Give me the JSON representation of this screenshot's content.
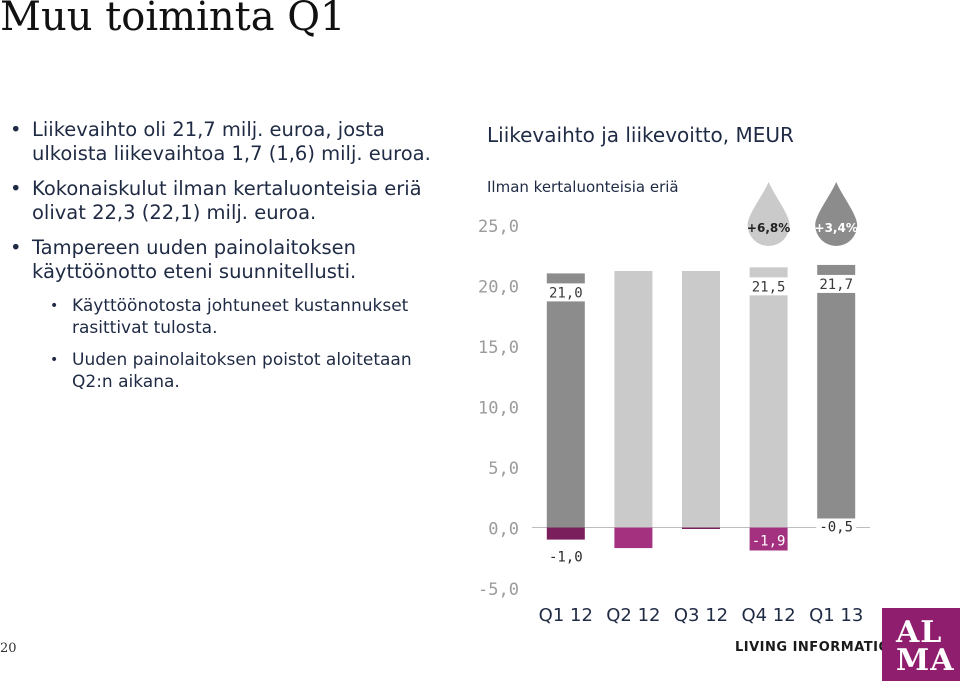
{
  "slide": {
    "title": "Muu toiminta Q1",
    "page_number": "20",
    "footer_tagline": "LIVING INFORMATION",
    "logo_text_line1": "AL",
    "logo_text_line2": "MA"
  },
  "bullets": [
    {
      "level": 1,
      "text": "Liikevaihto oli 21,7 milj. euroa, josta ulkoista liikevaihtoa 1,7 (1,6) milj. euroa."
    },
    {
      "level": 1,
      "text": "Kokonaiskulut ilman kertaluonteisia eriä olivat 22,3 (22,1) milj. euroa."
    },
    {
      "level": 1,
      "text": "Tampereen uuden painolaitoksen käyttöönotto eteni suunnitellusti."
    },
    {
      "level": 2,
      "text": "Käyttöönotosta johtuneet kustannukset rasittivat tulosta."
    },
    {
      "level": 2,
      "text": "Uuden painolaitoksen poistot aloitetaan Q2:n aikana."
    }
  ],
  "colors": {
    "bar_grey": "#8c8c8c",
    "bar_light": "#cacaca",
    "profit_dark": "#7a1f5c",
    "profit_mid": "#a3317f",
    "drop": "#8c8c8c",
    "axis_label": "#9b9b9b",
    "logo": "#8f1f6e"
  },
  "chart_data": {
    "type": "bar",
    "title": "Liikevaihto ja liikevoitto, MEUR",
    "subtitle": "Ilman kertaluonteisia eriä",
    "categories": [
      "Q1 12",
      "Q2 12",
      "Q3 12",
      "Q4 12",
      "Q1 13"
    ],
    "ylim": [
      -5,
      25
    ],
    "yticks": [
      "25,0",
      "20,0",
      "15,0",
      "10,0",
      "5,0",
      "0,0",
      "-5,0"
    ],
    "series": [
      {
        "name": "",
        "values": [
          21.0,
          21.2,
          21.2,
          21.5,
          21.7
        ],
        "labels": [
          "21,0",
          "",
          "",
          "21,5",
          "21,7"
        ],
        "bar_colors": [
          "#8c8c8c",
          "#cacaca",
          "#cacaca",
          "#cacaca",
          "#8c8c8c"
        ]
      },
      {
        "name": "",
        "values": [
          -1.0,
          -1.7,
          -0.1,
          -1.9,
          -0.5
        ],
        "labels": [
          "-1,0",
          "",
          "",
          "-1,9",
          "-0,5"
        ],
        "bar_colors": [
          "#7a1f5c",
          "#a3317f",
          "#7a1f5c",
          "#a3317f",
          "#7a1f5c"
        ]
      }
    ],
    "annotations": [
      {
        "category": "Q4 12",
        "text": "+6,8%",
        "shape": "drop",
        "color": "#cacaca"
      },
      {
        "category": "Q1 13",
        "text": "+3,4%",
        "shape": "drop",
        "color": "#8c8c8c"
      }
    ],
    "grid": false,
    "legend": "none"
  }
}
